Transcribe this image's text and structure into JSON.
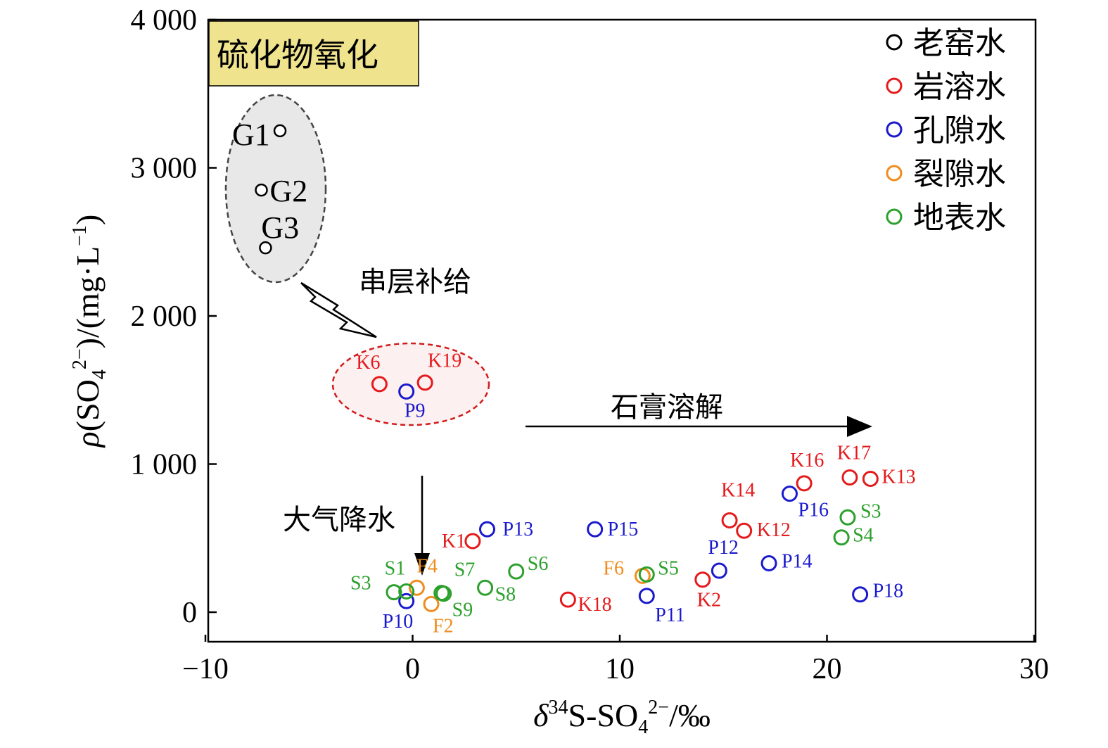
{
  "chart_data": {
    "type": "scatter",
    "xlabel": "δ³⁴S-SO₄²⁻/‰",
    "ylabel": "ρ(SO₄²⁻)/(mg·L⁻¹)",
    "xlim": [
      -10,
      30
    ],
    "ylim": [
      -200,
      4000
    ],
    "xticks": [
      -10,
      0,
      10,
      20,
      30
    ],
    "xtick_labels": [
      "−10",
      "0",
      "10",
      "20",
      "30"
    ],
    "yticks": [
      0,
      1000,
      2000,
      3000,
      4000
    ],
    "ytick_labels": [
      "0",
      "1 000",
      "2 000",
      "3 000",
      "4 000"
    ],
    "legend_position": "top-right",
    "series": [
      {
        "name": "老窑水",
        "color": "#000000",
        "points": [
          {
            "label": "G1",
            "x": -6.4,
            "y": 3250
          },
          {
            "label": "G2",
            "x": -7.3,
            "y": 2850
          },
          {
            "label": "G3",
            "x": -7.1,
            "y": 2460
          }
        ]
      },
      {
        "name": "岩溶水",
        "color": "#e41a1c",
        "points": [
          {
            "label": "K6",
            "x": -1.6,
            "y": 1540
          },
          {
            "label": "K19",
            "x": 0.6,
            "y": 1550
          },
          {
            "label": "K1",
            "x": 2.9,
            "y": 480
          },
          {
            "label": "K18",
            "x": 7.5,
            "y": 85
          },
          {
            "label": "K2",
            "x": 14.0,
            "y": 220
          },
          {
            "label": "K14",
            "x": 15.3,
            "y": 620
          },
          {
            "label": "K12",
            "x": 16.0,
            "y": 550
          },
          {
            "label": "K16",
            "x": 18.9,
            "y": 870
          },
          {
            "label": "K17",
            "x": 21.1,
            "y": 910
          },
          {
            "label": "K13",
            "x": 22.1,
            "y": 900
          }
        ]
      },
      {
        "name": "孔隙水",
        "color": "#1a1acc",
        "points": [
          {
            "label": "P9",
            "x": -0.3,
            "y": 1490
          },
          {
            "label": "P13",
            "x": 3.6,
            "y": 560
          },
          {
            "label": "P15",
            "x": 8.8,
            "y": 560
          },
          {
            "label": "P16",
            "x": 18.2,
            "y": 800
          },
          {
            "label": "P12",
            "x": 14.8,
            "y": 280
          },
          {
            "label": "P14",
            "x": 17.2,
            "y": 330
          },
          {
            "label": "P11",
            "x": 11.3,
            "y": 110
          },
          {
            "label": "P10",
            "x": -0.3,
            "y": 75
          },
          {
            "label": "P18",
            "x": 21.6,
            "y": 120
          }
        ]
      },
      {
        "name": "裂隙水",
        "color": "#f08c1e",
        "points": [
          {
            "label": "F4",
            "x": 0.2,
            "y": 165
          },
          {
            "label": "F2",
            "x": 0.9,
            "y": 55
          },
          {
            "label": "F6",
            "x": 11.1,
            "y": 245
          }
        ]
      },
      {
        "name": "地表水",
        "color": "#2ca02c",
        "points": [
          {
            "label": "S3",
            "x": -0.9,
            "y": 135
          },
          {
            "label": "S1",
            "x": -0.3,
            "y": 140
          },
          {
            "label": "S7",
            "x": 1.4,
            "y": 130
          },
          {
            "label": "S9",
            "x": 1.5,
            "y": 125
          },
          {
            "label": "S8",
            "x": 3.5,
            "y": 165
          },
          {
            "label": "S6",
            "x": 5.0,
            "y": 275
          },
          {
            "label": "S5",
            "x": 11.3,
            "y": 255
          },
          {
            "label": "S3",
            "x": 21.0,
            "y": 640
          },
          {
            "label": "S4",
            "x": 20.7,
            "y": 505
          }
        ]
      }
    ],
    "annotations": {
      "sulfide_box": "硫化物氧化",
      "leakage": "串层补给",
      "gypsum": "石膏溶解",
      "precipitation": "大气降水"
    }
  }
}
